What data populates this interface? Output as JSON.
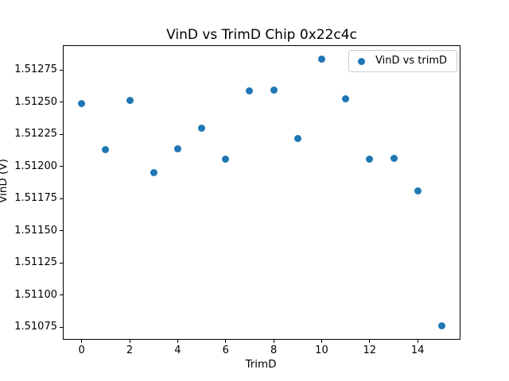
{
  "title": "VinD vs TrimD Chip 0x22c4c",
  "chart_data": {
    "type": "scatter",
    "title": "VinD vs TrimD Chip 0x22c4c",
    "xlabel": "TrimD",
    "ylabel": "VinD (V)",
    "legend": {
      "label": "VinD vs trimD",
      "position": "upper right"
    },
    "series": [
      {
        "name": "VinD vs trimD",
        "x": [
          0,
          1,
          2,
          3,
          4,
          5,
          6,
          7,
          8,
          9,
          10,
          11,
          12,
          13,
          14,
          15
        ],
        "y": [
          1.512488,
          1.512131,
          1.512515,
          1.511952,
          1.512137,
          1.5123,
          1.512061,
          1.512588,
          1.512596,
          1.512219,
          1.512835,
          1.512526,
          1.512061,
          1.512067,
          1.511814,
          1.510759
        ]
      }
    ],
    "xlim": [
      -0.75,
      15.75
    ],
    "ylim": [
      1.51066,
      1.512938
    ],
    "x_ticks": [
      0,
      2,
      4,
      6,
      8,
      10,
      12,
      14
    ],
    "y_ticks": [
      1.51075,
      1.511,
      1.51125,
      1.5115,
      1.51175,
      1.512,
      1.51225,
      1.5125,
      1.51275
    ],
    "y_tick_decimals": 5,
    "grid": false,
    "marker_color": "#1f77b4",
    "spine_color": "#000000",
    "legend_border_color": "#cccccc",
    "background_color": "#ffffff"
  }
}
